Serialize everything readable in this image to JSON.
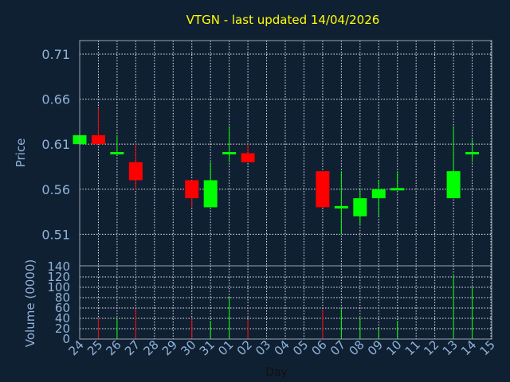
{
  "chart_data": {
    "type": "candlestick",
    "title": "VTGN - last updated 14/04/2026",
    "ylabel_price": "Price",
    "ylabel_volume": "Volume (0000)",
    "xlabel": "Day",
    "price_ylim": [
      0.475,
      0.725
    ],
    "price_ticks": [
      "0.71",
      "0.66",
      "0.61",
      "0.56",
      "0.51"
    ],
    "volume_ylim": [
      0,
      140
    ],
    "volume_ticks": [
      "140",
      "120",
      "100",
      "80",
      "60",
      "40",
      "20",
      "0"
    ],
    "x_ticks": [
      "24",
      "25",
      "26",
      "27",
      "28",
      "29",
      "30",
      "31",
      "01",
      "02",
      "03",
      "04",
      "05",
      "06",
      "07",
      "08",
      "09",
      "10",
      "11",
      "12",
      "13",
      "14",
      "15"
    ],
    "grid": true,
    "up_color": "#00ff00",
    "down_color": "#ff0000",
    "title_color": "#ffff00",
    "label_color": "#8fb3d9",
    "candles": [
      {
        "day": "24",
        "open": 0.61,
        "high": 0.62,
        "low": 0.61,
        "close": 0.62,
        "volume": 0
      },
      {
        "day": "25",
        "open": 0.62,
        "high": 0.65,
        "low": 0.61,
        "close": 0.61,
        "volume": 40
      },
      {
        "day": "26",
        "open": 0.6,
        "high": 0.62,
        "low": 0.6,
        "close": 0.6,
        "volume": 40
      },
      {
        "day": "27",
        "open": 0.59,
        "high": 0.61,
        "low": 0.56,
        "close": 0.57,
        "volume": 58
      },
      {
        "day": "30",
        "open": 0.57,
        "high": 0.57,
        "low": 0.54,
        "close": 0.55,
        "volume": 40
      },
      {
        "day": "31",
        "open": 0.54,
        "high": 0.59,
        "low": 0.54,
        "close": 0.57,
        "volume": 35
      },
      {
        "day": "01",
        "open": 0.6,
        "high": 0.63,
        "low": 0.59,
        "close": 0.6,
        "volume": 80
      },
      {
        "day": "02",
        "open": 0.6,
        "high": 0.61,
        "low": 0.59,
        "close": 0.59,
        "volume": 38
      },
      {
        "day": "06",
        "open": 0.58,
        "high": 0.58,
        "low": 0.54,
        "close": 0.54,
        "volume": 58
      },
      {
        "day": "07",
        "open": 0.54,
        "high": 0.58,
        "low": 0.51,
        "close": 0.54,
        "volume": 60
      },
      {
        "day": "08",
        "open": 0.53,
        "high": 0.56,
        "low": 0.52,
        "close": 0.55,
        "volume": 40
      },
      {
        "day": "09",
        "open": 0.55,
        "high": 0.57,
        "low": 0.53,
        "close": 0.56,
        "volume": 20
      },
      {
        "day": "10",
        "open": 0.56,
        "high": 0.58,
        "low": 0.56,
        "close": 0.56,
        "volume": 35
      },
      {
        "day": "13",
        "open": 0.55,
        "high": 0.63,
        "low": 0.55,
        "close": 0.58,
        "volume": 125
      },
      {
        "day": "14",
        "open": 0.6,
        "high": 0.615,
        "low": 0.59,
        "close": 0.6,
        "volume": 100
      }
    ]
  }
}
